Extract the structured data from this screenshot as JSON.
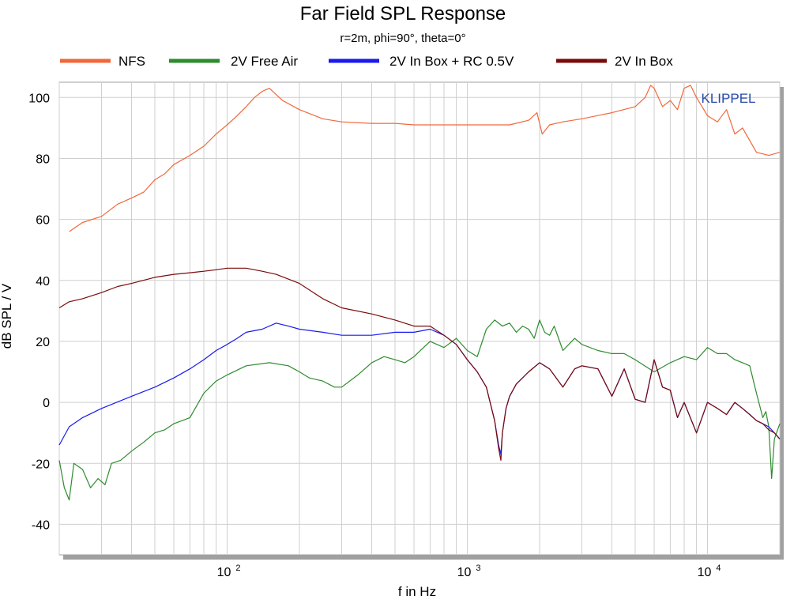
{
  "chart_data": {
    "type": "line",
    "title": "Far Field SPL Response",
    "subtitle": "r=2m, phi=90°, theta=0°",
    "xlabel": "f in Hz",
    "ylabel": "dB SPL / V",
    "x_scale": "log",
    "xlim": [
      20,
      20000
    ],
    "ylim": [
      -50,
      105
    ],
    "y_ticks": [
      100,
      80,
      60,
      40,
      20,
      0,
      -20,
      -40
    ],
    "y_tick_labels": [
      "100",
      "80",
      "60",
      "40",
      "20",
      "0",
      "-20",
      "-40"
    ],
    "x_ticks": [
      {
        "base": "10",
        "exp": "2"
      },
      {
        "base": "10",
        "exp": "3"
      },
      {
        "base": "10",
        "exp": "4"
      }
    ],
    "grid": true,
    "legend_position": "top",
    "annotation": "KLIPPEL",
    "series": [
      {
        "name": "NFS",
        "color": "#f0683a",
        "x": [
          22,
          25,
          30,
          35,
          40,
          45,
          50,
          55,
          60,
          70,
          80,
          90,
          100,
          110,
          120,
          130,
          140,
          150,
          170,
          200,
          250,
          300,
          400,
          500,
          600,
          700,
          800,
          1000,
          1200,
          1500,
          1800,
          1950,
          2050,
          2200,
          2500,
          3000,
          4000,
          5000,
          5500,
          5800,
          6000,
          6500,
          7000,
          7500,
          8000,
          8500,
          9000,
          10000,
          11000,
          12000,
          13000,
          14000,
          16000,
          18000,
          20000
        ],
        "values": [
          56,
          59,
          61,
          65,
          67,
          69,
          73,
          75,
          78,
          81,
          84,
          88,
          91,
          94,
          97,
          100,
          102,
          103,
          99,
          96,
          93,
          92,
          91.5,
          91.5,
          91,
          91,
          91,
          91,
          91,
          91,
          92.5,
          95,
          88,
          91,
          92,
          93,
          95,
          97,
          100,
          104,
          103,
          97,
          99,
          96,
          103,
          104,
          100,
          94,
          92,
          96,
          88,
          90,
          82,
          81,
          82
        ]
      },
      {
        "name": "2V Free Air",
        "color": "#2e8b2e",
        "x": [
          20,
          21,
          22,
          23,
          25,
          27,
          29,
          31,
          33,
          36,
          40,
          45,
          50,
          55,
          60,
          65,
          70,
          80,
          90,
          100,
          120,
          150,
          180,
          200,
          220,
          250,
          280,
          300,
          350,
          400,
          450,
          500,
          550,
          600,
          700,
          800,
          900,
          1000,
          1100,
          1200,
          1300,
          1400,
          1500,
          1600,
          1700,
          1800,
          1900,
          2000,
          2100,
          2200,
          2300,
          2500,
          2800,
          3000,
          3500,
          4000,
          4500,
          5000,
          6000,
          7000,
          8000,
          9000,
          10000,
          11000,
          12000,
          13000,
          14000,
          15000,
          16000,
          17000,
          17500,
          18000,
          18500,
          19000,
          20000
        ],
        "values": [
          -19,
          -28,
          -32,
          -20,
          -22,
          -28,
          -25,
          -27,
          -20,
          -19,
          -16,
          -13,
          -10,
          -9,
          -7,
          -6,
          -5,
          3,
          7,
          9,
          12,
          13,
          12,
          10,
          8,
          7,
          5,
          5,
          9,
          13,
          15,
          14,
          13,
          15,
          20,
          18,
          21,
          17,
          15,
          24,
          27,
          25,
          26,
          23,
          25,
          24,
          21,
          27,
          23,
          22,
          25,
          17,
          21,
          19,
          17,
          16,
          16,
          14,
          10,
          13,
          15,
          14,
          18,
          16,
          16,
          14,
          13,
          12,
          3,
          -5,
          -3,
          -8,
          -25,
          -12,
          -7
        ]
      },
      {
        "name": "2V In Box +  RC 0.5V",
        "color": "#1a1aee",
        "x": [
          20,
          22,
          25,
          30,
          40,
          50,
          60,
          70,
          80,
          90,
          100,
          110,
          120,
          140,
          160,
          180,
          200,
          250,
          300,
          400,
          500,
          600,
          700,
          800,
          900,
          1000,
          1100,
          1200,
          1300,
          1350,
          1380,
          1400,
          1450,
          1500,
          1600,
          1800,
          2000,
          2200,
          2500,
          2800,
          3000,
          3500,
          4000,
          4500,
          5000,
          5500,
          6000,
          6500,
          7000,
          7500,
          8000,
          9000,
          10000,
          11000,
          12000,
          13000,
          14000,
          15000,
          16000,
          17000,
          18000,
          19000,
          20000
        ],
        "values": [
          -14,
          -8,
          -5,
          -2,
          2,
          5,
          8,
          11,
          14,
          17,
          19,
          21,
          23,
          24,
          26,
          25,
          24,
          23,
          22,
          22,
          23,
          23,
          24,
          22,
          19,
          14,
          10,
          5,
          -6,
          -14,
          -17,
          -10,
          -2,
          2,
          6,
          10,
          13,
          11,
          5,
          11,
          12,
          11,
          2,
          11,
          1,
          0,
          14,
          5,
          4,
          -5,
          0,
          -10,
          0,
          -2,
          -4,
          0,
          -2,
          -4,
          -6,
          -7,
          -8,
          -10,
          -12
        ]
      },
      {
        "name": "2V In Box",
        "color": "#7a0a0a",
        "x": [
          20,
          22,
          25,
          30,
          35,
          40,
          50,
          60,
          70,
          80,
          90,
          100,
          110,
          120,
          140,
          160,
          200,
          250,
          300,
          400,
          500,
          600,
          700,
          800,
          900,
          1000,
          1100,
          1200,
          1300,
          1350,
          1380,
          1400,
          1450,
          1500,
          1600,
          1800,
          2000,
          2200,
          2500,
          2800,
          3000,
          3500,
          4000,
          4500,
          5000,
          5500,
          6000,
          6500,
          7000,
          7500,
          8000,
          9000,
          10000,
          11000,
          12000,
          13000,
          14000,
          15000,
          16000,
          17000,
          18000,
          19000,
          20000
        ],
        "values": [
          31,
          33,
          34,
          36,
          38,
          39,
          41,
          42,
          42.5,
          43,
          43.5,
          44,
          44,
          44,
          43,
          42,
          39,
          34,
          31,
          29,
          27,
          25,
          25,
          22,
          19,
          14,
          10,
          5,
          -6,
          -15,
          -19,
          -10,
          -2,
          2,
          6,
          10,
          13,
          11,
          5,
          11,
          12,
          11,
          2,
          11,
          1,
          0,
          14,
          5,
          4,
          -5,
          0,
          -10,
          0,
          -2,
          -4,
          0,
          -2,
          -4,
          -6,
          -7,
          -9,
          -10,
          -12
        ]
      }
    ]
  }
}
